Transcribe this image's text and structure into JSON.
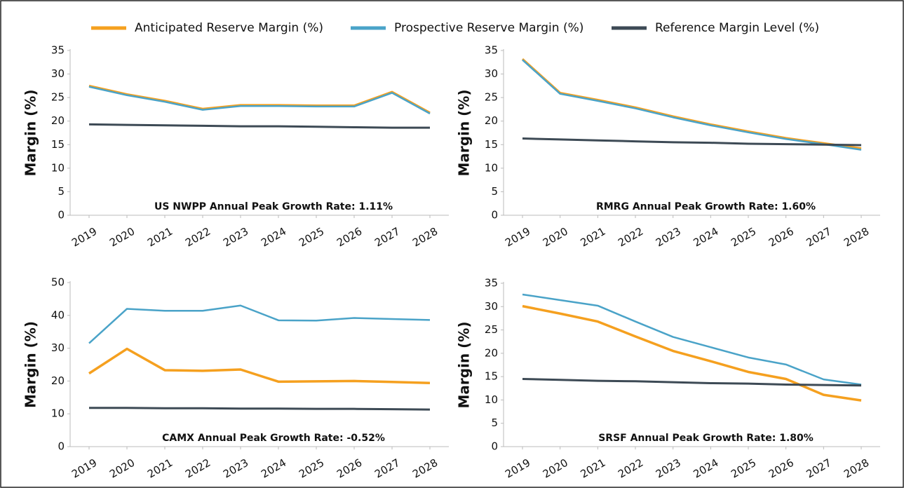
{
  "legend": [
    {
      "name": "Anticipated Reserve Margin (%)",
      "color": "#f5a01f"
    },
    {
      "name": "Prospective Reserve Margin (%)",
      "color": "#4aa3c8"
    },
    {
      "name": "Reference Margin Level (%)",
      "color": "#3d4a55"
    }
  ],
  "chart_data": [
    {
      "type": "line",
      "ylabel": "Margin (%)",
      "annotation": "US NWPP Annual Peak Growth Rate: 1.11%",
      "categories": [
        "2019",
        "2020",
        "2021",
        "2022",
        "2023",
        "2024",
        "2025",
        "2026",
        "2027",
        "2028"
      ],
      "ylim": [
        0,
        35
      ],
      "yticks": [
        0,
        5,
        10,
        15,
        20,
        25,
        30,
        35
      ],
      "series": [
        {
          "values": [
            27.5,
            25.7,
            24.3,
            22.6,
            23.4,
            23.4,
            23.3,
            23.3,
            26.2,
            21.8
          ]
        },
        {
          "values": [
            27.3,
            25.5,
            24.1,
            22.4,
            23.2,
            23.2,
            23.1,
            23.1,
            26.0,
            21.6
          ]
        },
        {
          "values": [
            19.3,
            19.2,
            19.1,
            19.0,
            18.9,
            18.9,
            18.8,
            18.7,
            18.6,
            18.6
          ]
        }
      ]
    },
    {
      "type": "line",
      "ylabel": "Margin (%)",
      "annotation": "RMRG Annual Peak Growth Rate: 1.60%",
      "categories": [
        "2019",
        "2020",
        "2021",
        "2022",
        "2023",
        "2024",
        "2025",
        "2026",
        "2027",
        "2028"
      ],
      "ylim": [
        0,
        35
      ],
      "yticks": [
        0,
        5,
        10,
        15,
        20,
        25,
        30,
        35
      ],
      "series": [
        {
          "values": [
            33.2,
            26.0,
            24.5,
            22.9,
            21.0,
            19.3,
            17.8,
            16.4,
            15.3,
            14.2
          ]
        },
        {
          "values": [
            33.0,
            25.8,
            24.3,
            22.7,
            20.8,
            19.1,
            17.6,
            16.2,
            15.1,
            13.9
          ]
        },
        {
          "values": [
            16.3,
            16.1,
            15.9,
            15.7,
            15.5,
            15.4,
            15.2,
            15.1,
            15.0,
            14.9
          ]
        }
      ]
    },
    {
      "type": "line",
      "ylabel": "Margin (%)",
      "annotation": "CAMX Annual Peak Growth Rate: -0.52%",
      "categories": [
        "2019",
        "2020",
        "2021",
        "2022",
        "2023",
        "2024",
        "2025",
        "2026",
        "2027",
        "2028"
      ],
      "ylim": [
        0,
        50
      ],
      "yticks": [
        0,
        10,
        20,
        30,
        40,
        50
      ],
      "series": [
        {
          "values": [
            22.3,
            29.8,
            23.3,
            23.1,
            23.5,
            19.8,
            19.9,
            20.0,
            19.7,
            19.4
          ]
        },
        {
          "values": [
            31.5,
            42.0,
            41.4,
            41.4,
            43.0,
            38.5,
            38.4,
            39.2,
            38.9,
            38.6
          ]
        },
        {
          "values": [
            11.8,
            11.8,
            11.7,
            11.7,
            11.6,
            11.6,
            11.5,
            11.5,
            11.4,
            11.3
          ]
        }
      ]
    },
    {
      "type": "line",
      "ylabel": "Margin (%)",
      "annotation": "SRSF Annual Peak Growth Rate: 1.80%",
      "categories": [
        "2019",
        "2020",
        "2021",
        "2022",
        "2023",
        "2024",
        "2025",
        "2026",
        "2027",
        "2028"
      ],
      "ylim": [
        0,
        35
      ],
      "yticks": [
        0,
        5,
        10,
        15,
        20,
        25,
        30,
        35
      ],
      "series": [
        {
          "values": [
            30.1,
            28.5,
            26.8,
            23.6,
            20.5,
            18.3,
            16.0,
            14.5,
            11.1,
            9.9
          ]
        },
        {
          "values": [
            32.6,
            31.4,
            30.2,
            26.8,
            23.5,
            21.3,
            19.1,
            17.6,
            14.4,
            13.3
          ]
        },
        {
          "values": [
            14.5,
            14.3,
            14.1,
            14.0,
            13.8,
            13.6,
            13.5,
            13.3,
            13.2,
            13.1
          ]
        }
      ]
    }
  ]
}
